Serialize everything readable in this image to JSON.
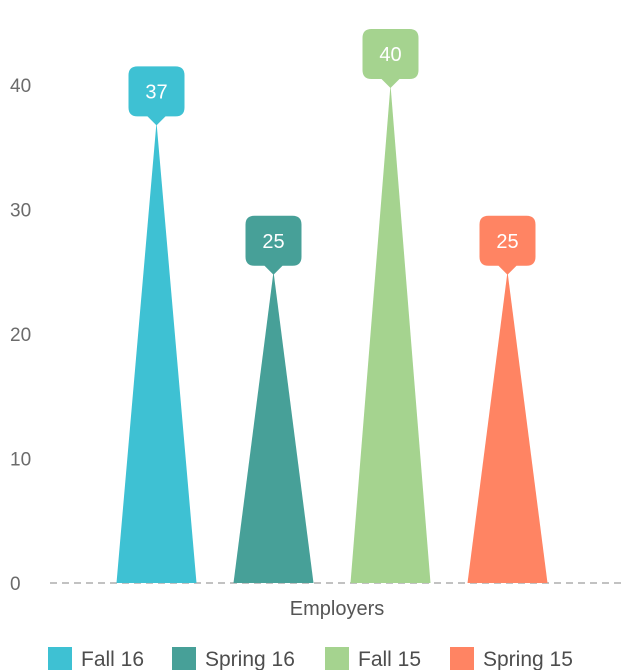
{
  "chart_data": {
    "type": "bar",
    "style": "spike-triangles with rounded callout value labels",
    "categories": [
      "Employers"
    ],
    "series": [
      {
        "name": "Fall 16",
        "values": [
          37
        ],
        "color": "#3ec1d3"
      },
      {
        "name": "Spring 16",
        "values": [
          25
        ],
        "color": "#47a098"
      },
      {
        "name": "Fall 15",
        "values": [
          40
        ],
        "color": "#a5d38f"
      },
      {
        "name": "Spring 15",
        "values": [
          25
        ],
        "color": "#ff8463"
      }
    ],
    "y_ticks": [
      "0",
      "10",
      "20",
      "30",
      "40"
    ],
    "ylim": [
      0,
      40
    ],
    "title": "",
    "xlabel": "",
    "ylabel": "",
    "grid": false,
    "baseline": "dashed",
    "legend_position": "bottom"
  }
}
